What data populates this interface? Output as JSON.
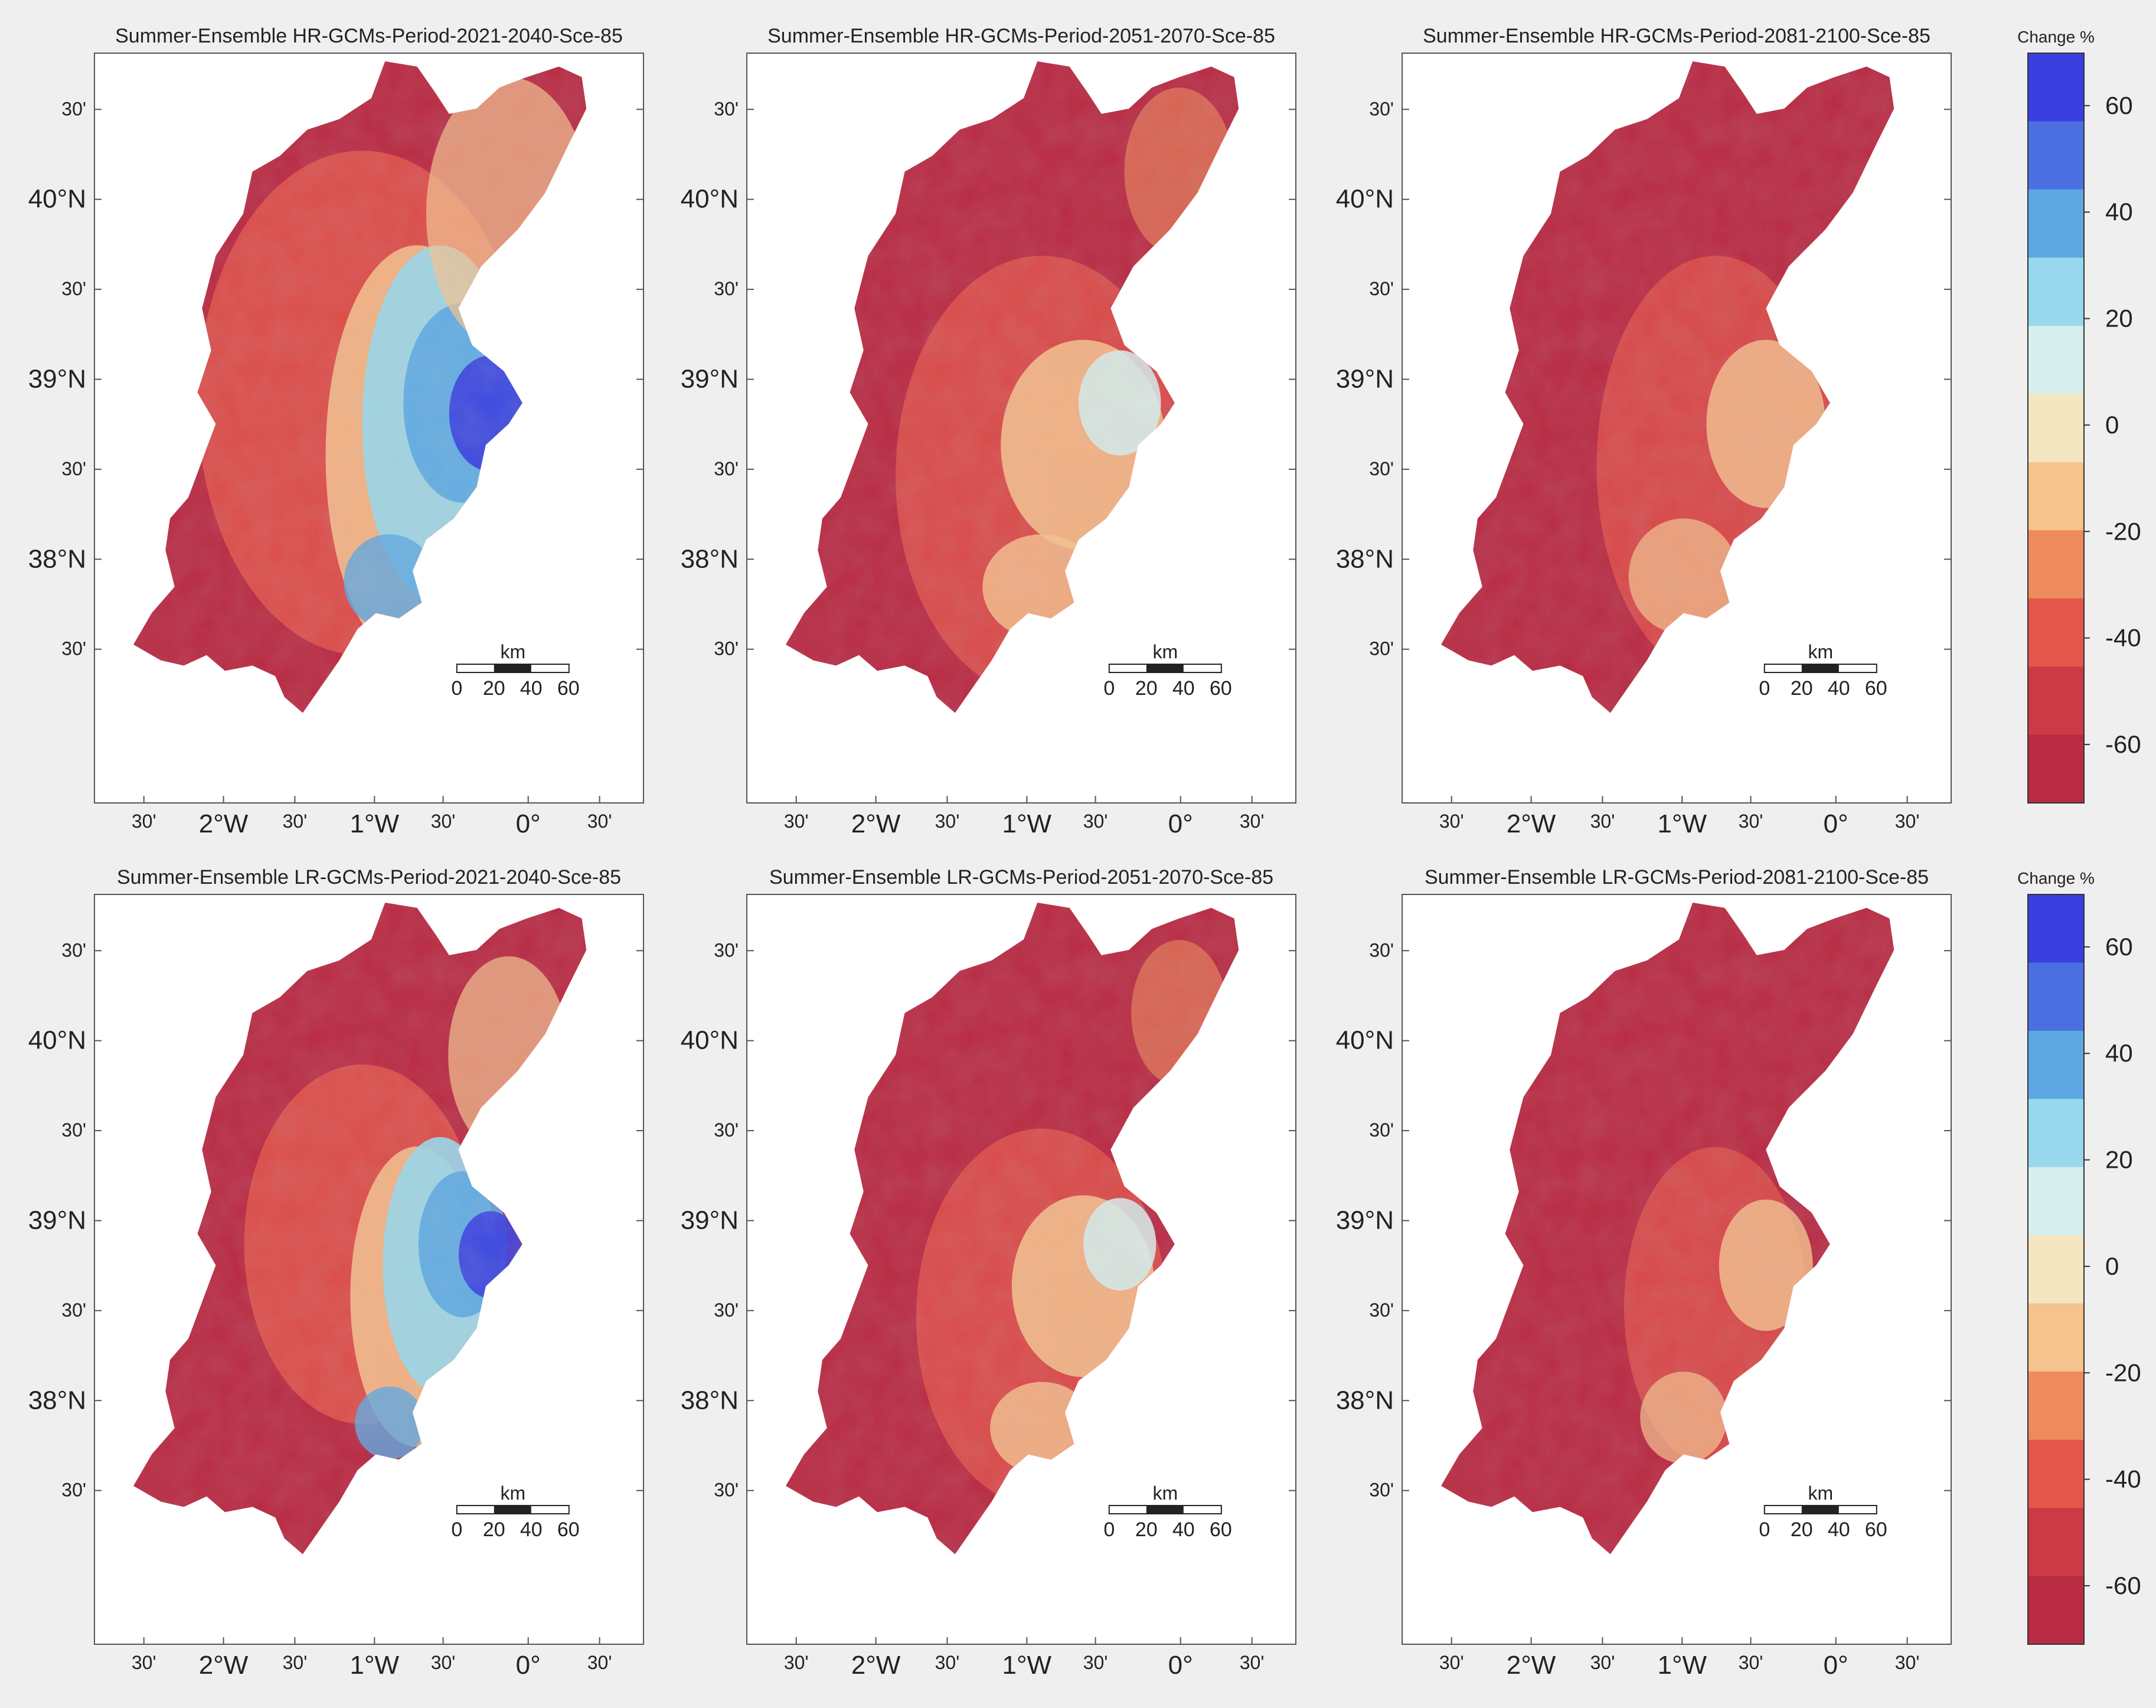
{
  "rows": [
    {
      "panels": [
        {
          "title": "Summer-Ensemble HR-GCMs-Period-2021-2040-Sce-85",
          "profile": "2021-2040",
          "strength": 1.0
        },
        {
          "title": "Summer-Ensemble HR-GCMs-Period-2051-2070-Sce-85",
          "profile": "2051-2070",
          "strength": 1.0
        },
        {
          "title": "Summer-Ensemble HR-GCMs-Period-2081-2100-Sce-85",
          "profile": "2081-2100",
          "strength": 1.0
        }
      ],
      "colorbar": {
        "title": "Change %",
        "ticks": [
          "60",
          "40",
          "20",
          "0",
          "-20",
          "-40",
          "-60"
        ]
      }
    },
    {
      "panels": [
        {
          "title": "Summer-Ensemble LR-GCMs-Period-2021-2040-Sce-85",
          "profile": "2021-2040",
          "strength": 0.7
        },
        {
          "title": "Summer-Ensemble LR-GCMs-Period-2051-2070-Sce-85",
          "profile": "2051-2070",
          "strength": 0.85
        },
        {
          "title": "Summer-Ensemble LR-GCMs-Period-2081-2100-Sce-85",
          "profile": "2081-2100",
          "strength": 0.75
        }
      ],
      "colorbar": {
        "title": "Change %",
        "ticks": [
          "60",
          "40",
          "20",
          "0",
          "-20",
          "-40",
          "-60"
        ]
      }
    }
  ],
  "lat_labels": [
    "30'",
    "40°N",
    "30'",
    "39°N",
    "30'",
    "38°N",
    "30'"
  ],
  "lon_labels": [
    "30'",
    "2°W",
    "30'",
    "1°W",
    "30'",
    "0°",
    "30'"
  ],
  "scalebar": {
    "unit": "km",
    "ticks": [
      "0",
      "20",
      "40",
      "60"
    ]
  },
  "colors": {
    "background": "#efefef",
    "dry": "#b92a43",
    "neutral": "#f6e7c4",
    "wet": "#3a3fe0"
  },
  "colormap": [
    "#3a3fe0",
    "#4b6fe0",
    "#5da8e3",
    "#98d8ec",
    "#d6efee",
    "#f4e6c0",
    "#f6c38e",
    "#ef8a5c",
    "#e5564c",
    "#cc3a45",
    "#b92a43"
  ]
}
